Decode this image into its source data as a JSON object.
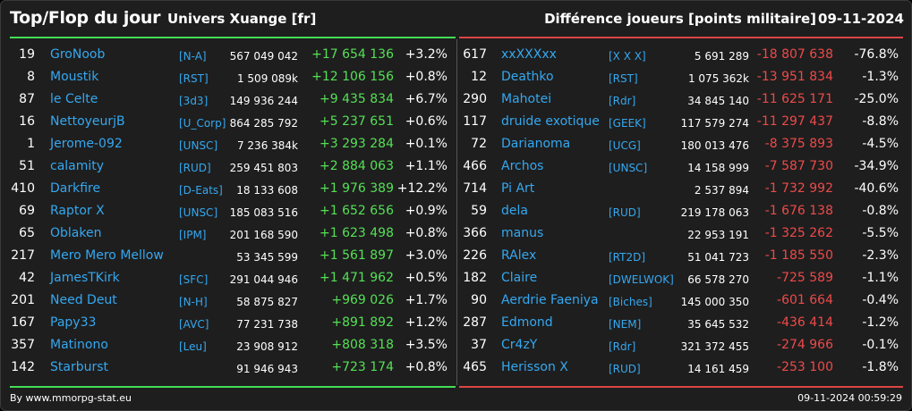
{
  "header": {
    "title": "Top/Flop du jour",
    "universe": "Univers Xuange [fr]",
    "category": "Différence joueurs [points militaire]",
    "date": "09-11-2024"
  },
  "colors": {
    "gain": "#55e055",
    "loss": "#ee4a4a",
    "link": "#35a8f0",
    "background": "#1e1e1e"
  },
  "top": [
    {
      "rank": "19",
      "name": "GroNoob",
      "alliance": "[N-A]",
      "points": "567 049 042",
      "diff": "+17 654 136",
      "pct": "+3.2%"
    },
    {
      "rank": "8",
      "name": "Moustik",
      "alliance": "[RST]",
      "points": "1 509 089k",
      "diff": "+12 106 156",
      "pct": "+0.8%"
    },
    {
      "rank": "87",
      "name": "le Celte",
      "alliance": "[3d3]",
      "points": "149 936 244",
      "diff": "+9 435 834",
      "pct": "+6.7%"
    },
    {
      "rank": "16",
      "name": "NettoyeurjB",
      "alliance": "[U_Corp]",
      "points": "864 285 792",
      "diff": "+5 237 651",
      "pct": "+0.6%"
    },
    {
      "rank": "1",
      "name": "Jerome-092",
      "alliance": "[UNSC]",
      "points": "7 236 384k",
      "diff": "+3 293 284",
      "pct": "+0.1%"
    },
    {
      "rank": "51",
      "name": "calamity",
      "alliance": "[RUD]",
      "points": "259 451 803",
      "diff": "+2 884 063",
      "pct": "+1.1%"
    },
    {
      "rank": "410",
      "name": "Darkfire",
      "alliance": "[D-Eats]",
      "points": "18 133 608",
      "diff": "+1 976 389",
      "pct": "+12.2%"
    },
    {
      "rank": "69",
      "name": "Raptor X",
      "alliance": "[UNSC]",
      "points": "185 083 516",
      "diff": "+1 652 656",
      "pct": "+0.9%"
    },
    {
      "rank": "65",
      "name": "Oblaken",
      "alliance": "[IPM]",
      "points": "201 168 590",
      "diff": "+1 623 498",
      "pct": "+0.8%"
    },
    {
      "rank": "217",
      "name": "Mero Mero Mellow",
      "alliance": "",
      "points": "53 345 599",
      "diff": "+1 561 897",
      "pct": "+3.0%"
    },
    {
      "rank": "42",
      "name": "JamesTKirk",
      "alliance": "[SFC]",
      "points": "291 044 946",
      "diff": "+1 471 962",
      "pct": "+0.5%"
    },
    {
      "rank": "201",
      "name": "Need Deut",
      "alliance": "[N-H]",
      "points": "58 875 827",
      "diff": "+969 026",
      "pct": "+1.7%"
    },
    {
      "rank": "167",
      "name": "Papy33",
      "alliance": "[AVC]",
      "points": "77 231 738",
      "diff": "+891 892",
      "pct": "+1.2%"
    },
    {
      "rank": "357",
      "name": "Matinono",
      "alliance": "[Leu]",
      "points": "23 908 912",
      "diff": "+808 318",
      "pct": "+3.5%"
    },
    {
      "rank": "142",
      "name": "Starburst",
      "alliance": "",
      "points": "91 946 943",
      "diff": "+723 174",
      "pct": "+0.8%"
    }
  ],
  "flop": [
    {
      "rank": "617",
      "name": "xxXXXxx",
      "alliance": "[X X X]",
      "points": "5 691 289",
      "diff": "-18 807 638",
      "pct": "-76.8%"
    },
    {
      "rank": "12",
      "name": "Deathko",
      "alliance": "[RST]",
      "points": "1 075 362k",
      "diff": "-13 951 834",
      "pct": "-1.3%"
    },
    {
      "rank": "290",
      "name": "Mahotei",
      "alliance": "[Rdr]",
      "points": "34 845 140",
      "diff": "-11 625 171",
      "pct": "-25.0%"
    },
    {
      "rank": "117",
      "name": "druide exotique",
      "alliance": "[GEEK]",
      "points": "117 579 274",
      "diff": "-11 297 437",
      "pct": "-8.8%"
    },
    {
      "rank": "72",
      "name": "Darianoma",
      "alliance": "[UCG]",
      "points": "180 013 476",
      "diff": "-8 375 893",
      "pct": "-4.5%"
    },
    {
      "rank": "466",
      "name": "Archos",
      "alliance": "[UNSC]",
      "points": "14 158 999",
      "diff": "-7 587 730",
      "pct": "-34.9%"
    },
    {
      "rank": "714",
      "name": "Pi Art",
      "alliance": "",
      "points": "2 537 894",
      "diff": "-1 732 992",
      "pct": "-40.6%"
    },
    {
      "rank": "59",
      "name": "dela",
      "alliance": "[RUD]",
      "points": "219 178 063",
      "diff": "-1 676 138",
      "pct": "-0.8%"
    },
    {
      "rank": "366",
      "name": "manus",
      "alliance": "",
      "points": "22 953 191",
      "diff": "-1 325 262",
      "pct": "-5.5%"
    },
    {
      "rank": "226",
      "name": "RAlex",
      "alliance": "[RT2D]",
      "points": "51 041 723",
      "diff": "-1 185 550",
      "pct": "-2.3%"
    },
    {
      "rank": "182",
      "name": "Claire",
      "alliance": "[DWELWOK]",
      "points": "66 578 270",
      "diff": "-725 589",
      "pct": "-1.1%"
    },
    {
      "rank": "90",
      "name": "Aerdrie Faeniya",
      "alliance": "[Biches]",
      "points": "145 000 350",
      "diff": "-601 664",
      "pct": "-0.4%"
    },
    {
      "rank": "287",
      "name": "Edmond",
      "alliance": "[NEM]",
      "points": "35 645 532",
      "diff": "-436 414",
      "pct": "-1.2%"
    },
    {
      "rank": "37",
      "name": "Cr4zY",
      "alliance": "[Rdr]",
      "points": "321 372 455",
      "diff": "-274 966",
      "pct": "-0.1%"
    },
    {
      "rank": "465",
      "name": "Herisson X",
      "alliance": "[RUD]",
      "points": "14 161 459",
      "diff": "-253 100",
      "pct": "-1.8%"
    }
  ],
  "footer": {
    "credit": "By www.mmorpg-stat.eu",
    "timestamp": "09-11-2024 00:59:29"
  }
}
